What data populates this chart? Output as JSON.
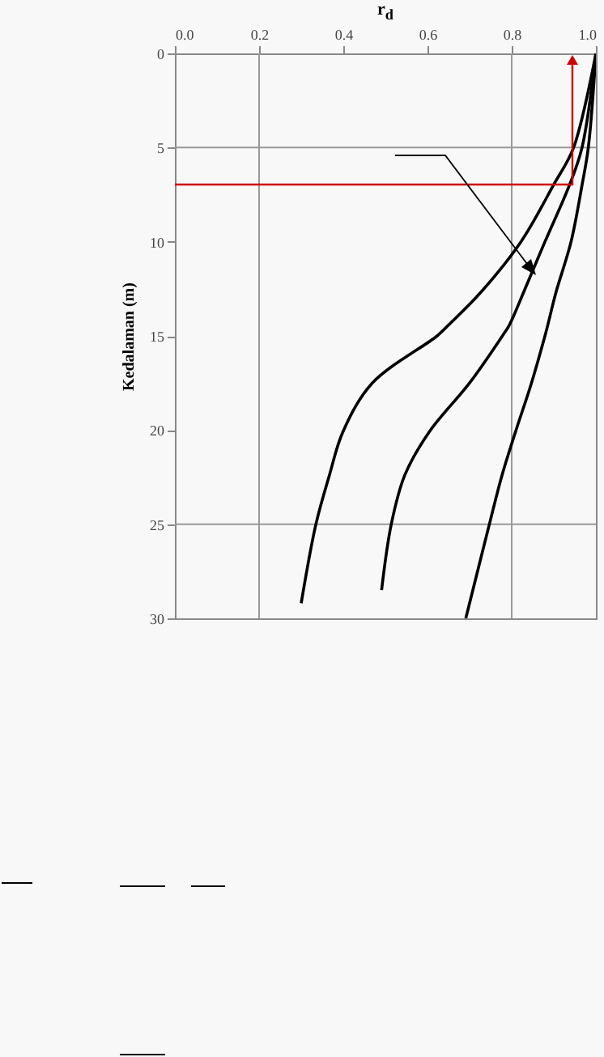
{
  "chart_data": {
    "type": "line",
    "xlabel": "r$_{d}$",
    "ylabel": "Kedalaman (m)",
    "xlim": [
      0,
      1
    ],
    "xticks": [
      {
        "value": 0,
        "label": "0.0"
      },
      0.2,
      0.4,
      0.6,
      0.8,
      {
        "value": 1,
        "label": "1.0"
      }
    ],
    "ylim": [
      30,
      0
    ],
    "yticks": [
      0,
      5,
      10,
      15,
      20,
      25,
      30
    ],
    "marker": "none",
    "line_style": "solid",
    "ref_lines": [
      {
        "axis": "x",
        "value": 0.2,
        "color": "#999999"
      },
      {
        "axis": "x",
        "value": 0.8,
        "color": "#999999"
      },
      {
        "axis": "y",
        "value": 5,
        "color": "#999999"
      },
      {
        "axis": "y",
        "value": 25,
        "color": "#999999"
      }
    ],
    "series": [
      {
        "color": "#000000",
        "x": [
          1,
          0.947,
          0.899,
          0.822,
          0.726,
          0.651,
          0.623,
          0.469,
          0.399,
          0.367,
          0.335,
          0.3
        ],
        "values": [
          0,
          5,
          7,
          10,
          12.7,
          14.4,
          15,
          17.5,
          20.1,
          22.4,
          25,
          29.2
        ]
      },
      {
        "color": "#000000",
        "x": [
          1,
          0.967,
          0.937,
          0.879,
          0.828,
          0.795,
          0.778,
          0.7,
          0.604,
          0.546,
          0.514,
          0.491
        ],
        "values": [
          0,
          5,
          7,
          10,
          12.7,
          14.4,
          15,
          17.5,
          20.1,
          22.4,
          25,
          28.5
        ]
      },
      {
        "color": "#000000",
        "x": [
          1,
          0.982,
          0.967,
          0.941,
          0.905,
          0.886,
          0.879,
          0.847,
          0.809,
          0.777,
          0.747,
          0.691
        ],
        "values": [
          0,
          5,
          7,
          10,
          12.7,
          14.4,
          15,
          17.5,
          20.1,
          22.4,
          25,
          30
        ]
      }
    ]
  }
}
